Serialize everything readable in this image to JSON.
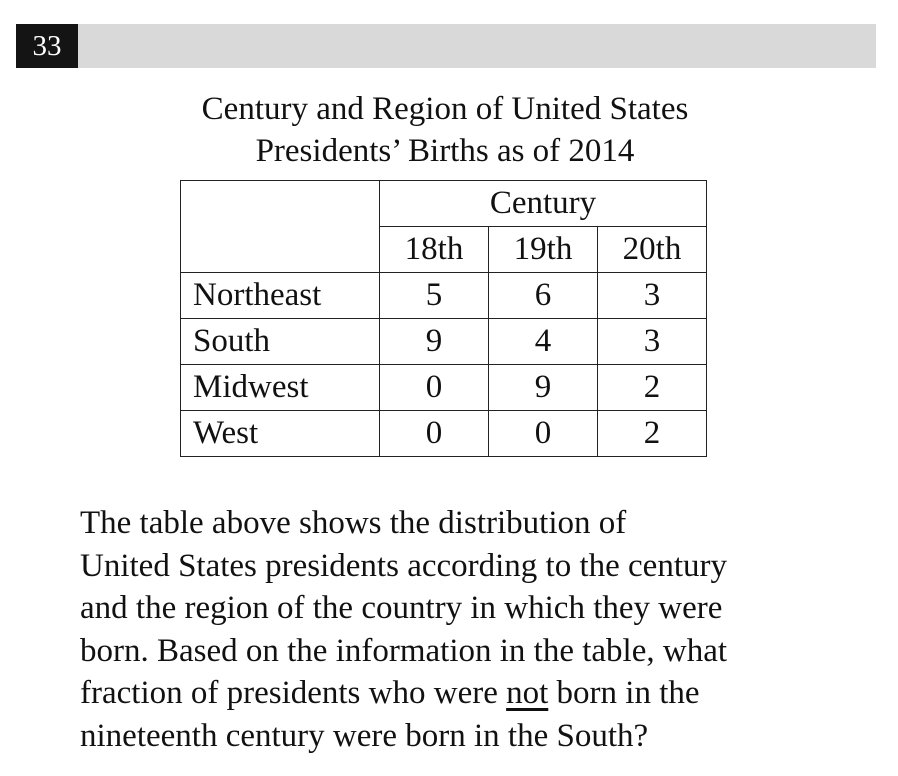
{
  "question": {
    "number": "33"
  },
  "table": {
    "title_lines": [
      "Century and Region of United States",
      "Presidents’ Births as of 2014"
    ],
    "group_header": "Century",
    "columns": [
      "18th",
      "19th",
      "20th"
    ],
    "rows": [
      {
        "region": "Northeast",
        "values": [
          "5",
          "6",
          "3"
        ]
      },
      {
        "region": "South",
        "values": [
          "9",
          "4",
          "3"
        ]
      },
      {
        "region": "Midwest",
        "values": [
          "0",
          "9",
          "2"
        ]
      },
      {
        "region": "West",
        "values": [
          "0",
          "0",
          "2"
        ]
      }
    ]
  },
  "text": {
    "line1": "The table above shows the distribution of",
    "line2": "United States presidents according to the century",
    "line3": "and the region of the country in which they were",
    "line4": "born. Based on the information in the table, what",
    "line5_before": "fraction of presidents who were ",
    "line5_underlined": "not",
    "line5_after": " born in the",
    "line6": "nineteenth century were born in the South?"
  }
}
